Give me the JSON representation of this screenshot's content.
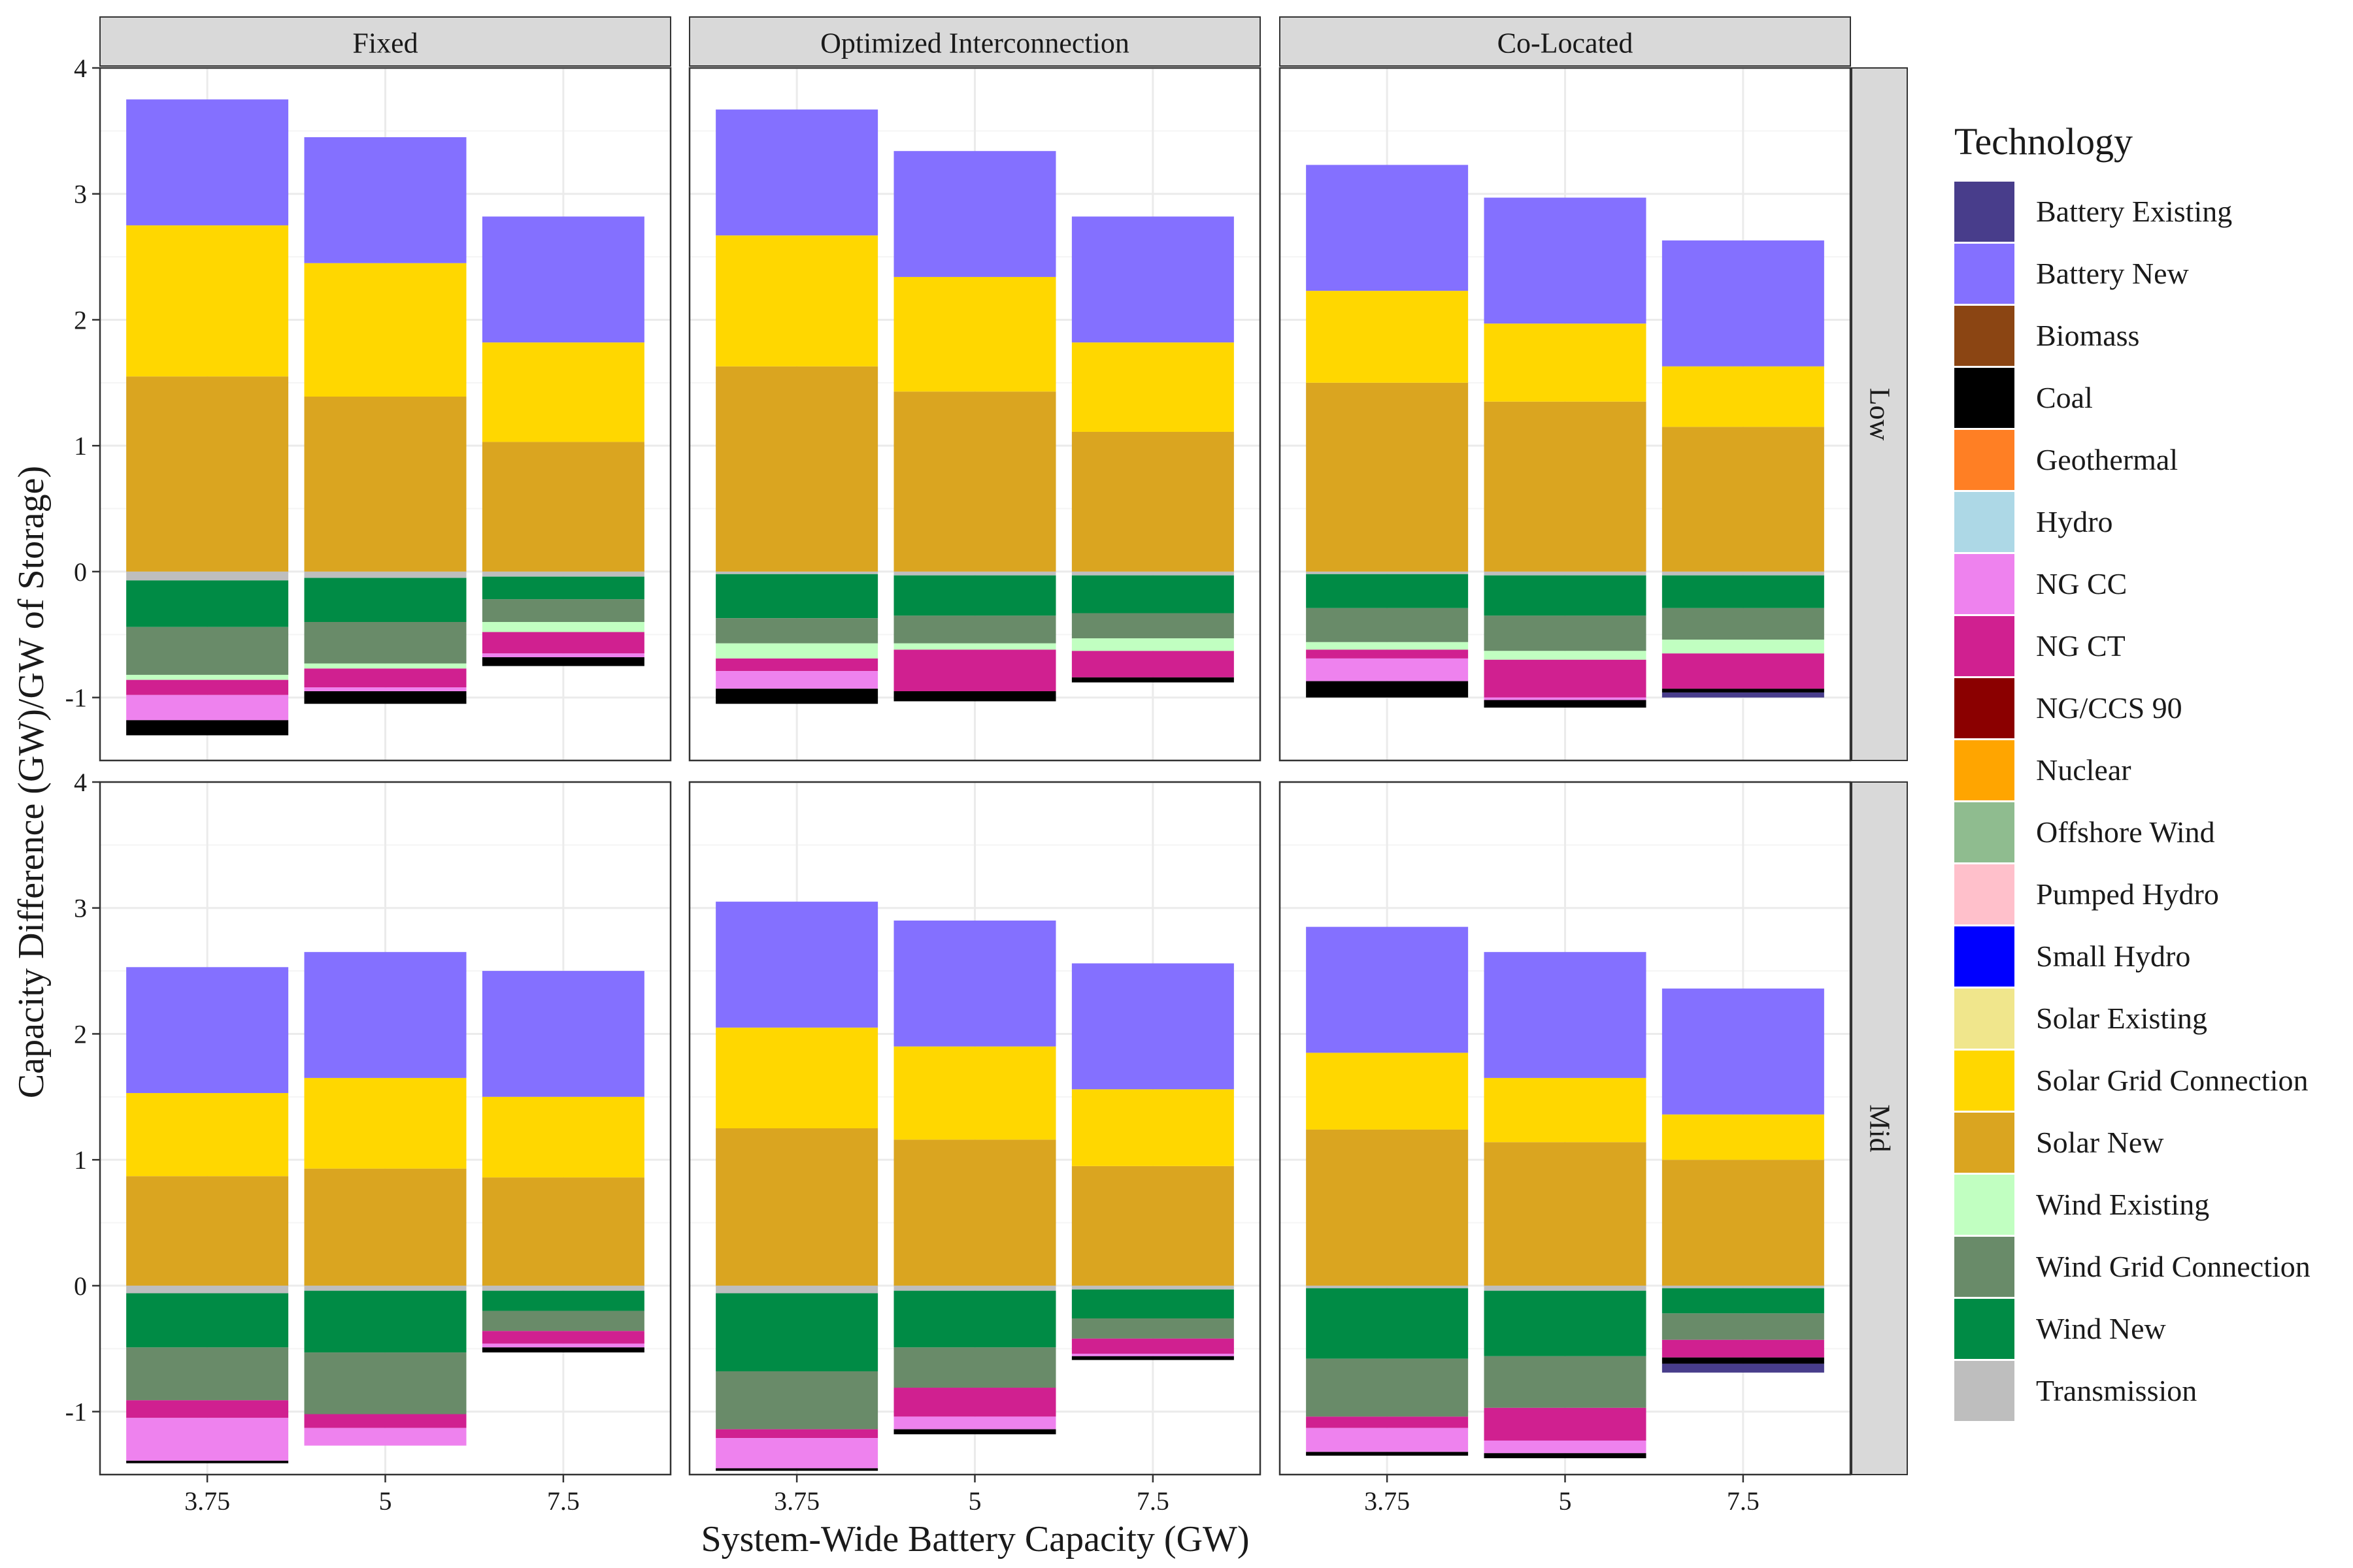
{
  "chart_data": {
    "type": "bar",
    "stacked": true,
    "xlabel": "System-Wide Battery Capacity (GW)",
    "ylabel": "Capacity Difference (GW)/GW of Storage)",
    "ylim": [
      -1.5,
      4
    ],
    "yticks": [
      -1,
      0,
      1,
      2,
      3,
      4
    ],
    "categories": [
      "3.75",
      "5",
      "7.5"
    ],
    "columns": [
      "Fixed",
      "Optimized Interconnection",
      "Co-Located"
    ],
    "rows": [
      "Low",
      "Mid"
    ],
    "legend": {
      "title": "Technology",
      "position": "right",
      "items": [
        {
          "name": "Battery Existing",
          "color": "#483D8B"
        },
        {
          "name": "Battery New",
          "color": "#8470FF"
        },
        {
          "name": "Biomass",
          "color": "#8B4513"
        },
        {
          "name": "Coal",
          "color": "#000000"
        },
        {
          "name": "Geothermal",
          "color": "#FF7F24"
        },
        {
          "name": "Hydro",
          "color": "#ADD8E6"
        },
        {
          "name": "NG CC",
          "color": "#EE82EE"
        },
        {
          "name": "NG CT",
          "color": "#D02090"
        },
        {
          "name": "NG/CCS 90",
          "color": "#8B0000"
        },
        {
          "name": "Nuclear",
          "color": "#FFA500"
        },
        {
          "name": "Offshore Wind",
          "color": "#8FBC8F"
        },
        {
          "name": "Pumped Hydro",
          "color": "#FFC0CB"
        },
        {
          "name": "Small Hydro",
          "color": "#0000FF"
        },
        {
          "name": "Solar Existing",
          "color": "#F0E68C"
        },
        {
          "name": "Solar Grid Connection",
          "color": "#FFD700"
        },
        {
          "name": "Solar New",
          "color": "#DAA520"
        },
        {
          "name": "Wind Existing",
          "color": "#C1FFC1"
        },
        {
          "name": "Wind Grid Connection",
          "color": "#698B69"
        },
        {
          "name": "Wind New",
          "color": "#008B45"
        },
        {
          "name": "Transmission",
          "color": "#BEBEBE"
        }
      ]
    },
    "panels": [
      {
        "column": "Fixed",
        "row": "Low",
        "bars": [
          {
            "x": "3.75",
            "pos": [
              [
                "Solar New",
                1.55
              ],
              [
                "Solar Grid Connection",
                1.2
              ],
              [
                "Battery New",
                1.0
              ]
            ],
            "neg": [
              [
                "Transmission",
                0.07
              ],
              [
                "Wind New",
                0.37
              ],
              [
                "Wind Grid Connection",
                0.38
              ],
              [
                "Wind Existing",
                0.04
              ],
              [
                "NG CT",
                0.12
              ],
              [
                "NG CC",
                0.2
              ],
              [
                "Coal",
                0.12
              ]
            ]
          },
          {
            "x": "5",
            "pos": [
              [
                "Solar New",
                1.39
              ],
              [
                "Solar Grid Connection",
                1.06
              ],
              [
                "Battery New",
                1.0
              ]
            ],
            "neg": [
              [
                "Transmission",
                0.05
              ],
              [
                "Wind New",
                0.35
              ],
              [
                "Wind Grid Connection",
                0.33
              ],
              [
                "Wind Existing",
                0.04
              ],
              [
                "NG CT",
                0.15
              ],
              [
                "NG CC",
                0.03
              ],
              [
                "Coal",
                0.1
              ]
            ]
          },
          {
            "x": "7.5",
            "pos": [
              [
                "Solar New",
                1.03
              ],
              [
                "Solar Grid Connection",
                0.79
              ],
              [
                "Battery New",
                1.0
              ]
            ],
            "neg": [
              [
                "Transmission",
                0.04
              ],
              [
                "Wind New",
                0.18
              ],
              [
                "Wind Grid Connection",
                0.18
              ],
              [
                "Wind Existing",
                0.08
              ],
              [
                "NG CT",
                0.17
              ],
              [
                "NG CC",
                0.03
              ],
              [
                "Coal",
                0.07
              ]
            ]
          }
        ]
      },
      {
        "column": "Optimized Interconnection",
        "row": "Low",
        "bars": [
          {
            "x": "3.75",
            "pos": [
              [
                "Solar New",
                1.63
              ],
              [
                "Solar Grid Connection",
                1.04
              ],
              [
                "Battery New",
                1.0
              ]
            ],
            "neg": [
              [
                "Transmission",
                0.02
              ],
              [
                "Wind New",
                0.35
              ],
              [
                "Wind Grid Connection",
                0.2
              ],
              [
                "Wind Existing",
                0.12
              ],
              [
                "NG CT",
                0.1
              ],
              [
                "NG CC",
                0.14
              ],
              [
                "Coal",
                0.12
              ]
            ]
          },
          {
            "x": "5",
            "pos": [
              [
                "Solar New",
                1.43
              ],
              [
                "Solar Grid Connection",
                0.91
              ],
              [
                "Battery New",
                1.0
              ]
            ],
            "neg": [
              [
                "Transmission",
                0.03
              ],
              [
                "Wind New",
                0.32
              ],
              [
                "Wind Grid Connection",
                0.22
              ],
              [
                "Wind Existing",
                0.05
              ],
              [
                "NG CT",
                0.33
              ],
              [
                "Coal",
                0.08
              ]
            ]
          },
          {
            "x": "7.5",
            "pos": [
              [
                "Solar New",
                1.11
              ],
              [
                "Solar Grid Connection",
                0.71
              ],
              [
                "Battery New",
                1.0
              ]
            ],
            "neg": [
              [
                "Transmission",
                0.03
              ],
              [
                "Wind New",
                0.3
              ],
              [
                "Wind Grid Connection",
                0.2
              ],
              [
                "Wind Existing",
                0.1
              ],
              [
                "NG CT",
                0.21
              ],
              [
                "Coal",
                0.04
              ]
            ]
          }
        ]
      },
      {
        "column": "Co-Located",
        "row": "Low",
        "bars": [
          {
            "x": "3.75",
            "pos": [
              [
                "Solar New",
                1.5
              ],
              [
                "Solar Grid Connection",
                0.73
              ],
              [
                "Battery New",
                1.0
              ]
            ],
            "neg": [
              [
                "Transmission",
                0.02
              ],
              [
                "Wind New",
                0.27
              ],
              [
                "Wind Grid Connection",
                0.27
              ],
              [
                "Wind Existing",
                0.06
              ],
              [
                "NG CT",
                0.07
              ],
              [
                "NG CC",
                0.18
              ],
              [
                "Coal",
                0.13
              ]
            ]
          },
          {
            "x": "5",
            "pos": [
              [
                "Solar New",
                1.35
              ],
              [
                "Solar Grid Connection",
                0.62
              ],
              [
                "Battery New",
                1.0
              ]
            ],
            "neg": [
              [
                "Transmission",
                0.03
              ],
              [
                "Wind New",
                0.32
              ],
              [
                "Wind Grid Connection",
                0.28
              ],
              [
                "Wind Existing",
                0.07
              ],
              [
                "NG CT",
                0.3
              ],
              [
                "NG CC",
                0.02
              ],
              [
                "Coal",
                0.06
              ]
            ]
          },
          {
            "x": "7.5",
            "pos": [
              [
                "Solar New",
                1.15
              ],
              [
                "Solar Grid Connection",
                0.48
              ],
              [
                "Battery New",
                1.0
              ]
            ],
            "neg": [
              [
                "Transmission",
                0.03
              ],
              [
                "Wind New",
                0.26
              ],
              [
                "Wind Grid Connection",
                0.25
              ],
              [
                "Wind Existing",
                0.11
              ],
              [
                "NG CT",
                0.28
              ],
              [
                "Coal",
                0.03
              ],
              [
                "Battery Existing",
                0.04
              ]
            ]
          }
        ]
      },
      {
        "column": "Fixed",
        "row": "Mid",
        "bars": [
          {
            "x": "3.75",
            "pos": [
              [
                "Solar New",
                0.87
              ],
              [
                "Solar Grid Connection",
                0.66
              ],
              [
                "Battery New",
                1.0
              ]
            ],
            "neg": [
              [
                "Transmission",
                0.06
              ],
              [
                "Wind New",
                0.43
              ],
              [
                "Wind Grid Connection",
                0.42
              ],
              [
                "NG CT",
                0.14
              ],
              [
                "NG CC",
                0.34
              ],
              [
                "Coal",
                0.02
              ]
            ]
          },
          {
            "x": "5",
            "pos": [
              [
                "Solar New",
                0.93
              ],
              [
                "Solar Grid Connection",
                0.72
              ],
              [
                "Battery New",
                1.0
              ]
            ],
            "neg": [
              [
                "Transmission",
                0.04
              ],
              [
                "Wind New",
                0.49
              ],
              [
                "Wind Grid Connection",
                0.49
              ],
              [
                "NG CT",
                0.11
              ],
              [
                "NG CC",
                0.14
              ]
            ]
          },
          {
            "x": "7.5",
            "pos": [
              [
                "Solar New",
                0.86
              ],
              [
                "Solar Grid Connection",
                0.64
              ],
              [
                "Battery New",
                1.0
              ]
            ],
            "neg": [
              [
                "Transmission",
                0.04
              ],
              [
                "Wind New",
                0.16
              ],
              [
                "Wind Grid Connection",
                0.16
              ],
              [
                "NG CT",
                0.1
              ],
              [
                "NG CC",
                0.03
              ],
              [
                "Coal",
                0.04
              ]
            ]
          }
        ]
      },
      {
        "column": "Optimized Interconnection",
        "row": "Mid",
        "bars": [
          {
            "x": "3.75",
            "pos": [
              [
                "Solar New",
                1.25
              ],
              [
                "Solar Grid Connection",
                0.8
              ],
              [
                "Battery New",
                1.0
              ]
            ],
            "neg": [
              [
                "Transmission",
                0.06
              ],
              [
                "Wind New",
                0.62
              ],
              [
                "Wind Grid Connection",
                0.46
              ],
              [
                "NG CT",
                0.07
              ],
              [
                "NG CC",
                0.24
              ],
              [
                "Coal",
                0.02
              ]
            ]
          },
          {
            "x": "5",
            "pos": [
              [
                "Solar New",
                1.16
              ],
              [
                "Solar Grid Connection",
                0.74
              ],
              [
                "Battery New",
                1.0
              ]
            ],
            "neg": [
              [
                "Transmission",
                0.04
              ],
              [
                "Wind New",
                0.45
              ],
              [
                "Wind Grid Connection",
                0.32
              ],
              [
                "NG CT",
                0.23
              ],
              [
                "NG CC",
                0.1
              ],
              [
                "Coal",
                0.04
              ]
            ]
          },
          {
            "x": "7.5",
            "pos": [
              [
                "Solar New",
                0.95
              ],
              [
                "Solar Grid Connection",
                0.61
              ],
              [
                "Battery New",
                1.0
              ]
            ],
            "neg": [
              [
                "Transmission",
                0.03
              ],
              [
                "Wind New",
                0.23
              ],
              [
                "Wind Grid Connection",
                0.16
              ],
              [
                "NG CT",
                0.12
              ],
              [
                "NG CC",
                0.02
              ],
              [
                "Coal",
                0.03
              ]
            ]
          }
        ]
      },
      {
        "column": "Co-Located",
        "row": "Mid",
        "bars": [
          {
            "x": "3.75",
            "pos": [
              [
                "Solar New",
                1.24
              ],
              [
                "Solar Grid Connection",
                0.61
              ],
              [
                "Battery New",
                1.0
              ]
            ],
            "neg": [
              [
                "Transmission",
                0.02
              ],
              [
                "Wind New",
                0.56
              ],
              [
                "Wind Grid Connection",
                0.46
              ],
              [
                "NG CT",
                0.09
              ],
              [
                "NG CC",
                0.19
              ],
              [
                "Coal",
                0.03
              ]
            ]
          },
          {
            "x": "5",
            "pos": [
              [
                "Solar New",
                1.14
              ],
              [
                "Solar Grid Connection",
                0.51
              ],
              [
                "Battery New",
                1.0
              ]
            ],
            "neg": [
              [
                "Transmission",
                0.04
              ],
              [
                "Wind New",
                0.52
              ],
              [
                "Wind Grid Connection",
                0.41
              ],
              [
                "NG CT",
                0.26
              ],
              [
                "NG CC",
                0.1
              ],
              [
                "Coal",
                0.04
              ]
            ]
          },
          {
            "x": "7.5",
            "pos": [
              [
                "Solar New",
                1.0
              ],
              [
                "Solar Grid Connection",
                0.36
              ],
              [
                "Battery New",
                1.0
              ]
            ],
            "neg": [
              [
                "Transmission",
                0.02
              ],
              [
                "Wind New",
                0.2
              ],
              [
                "Wind Grid Connection",
                0.21
              ],
              [
                "NG CT",
                0.14
              ],
              [
                "Coal",
                0.05
              ],
              [
                "Battery Existing",
                0.07
              ]
            ]
          }
        ]
      }
    ]
  }
}
